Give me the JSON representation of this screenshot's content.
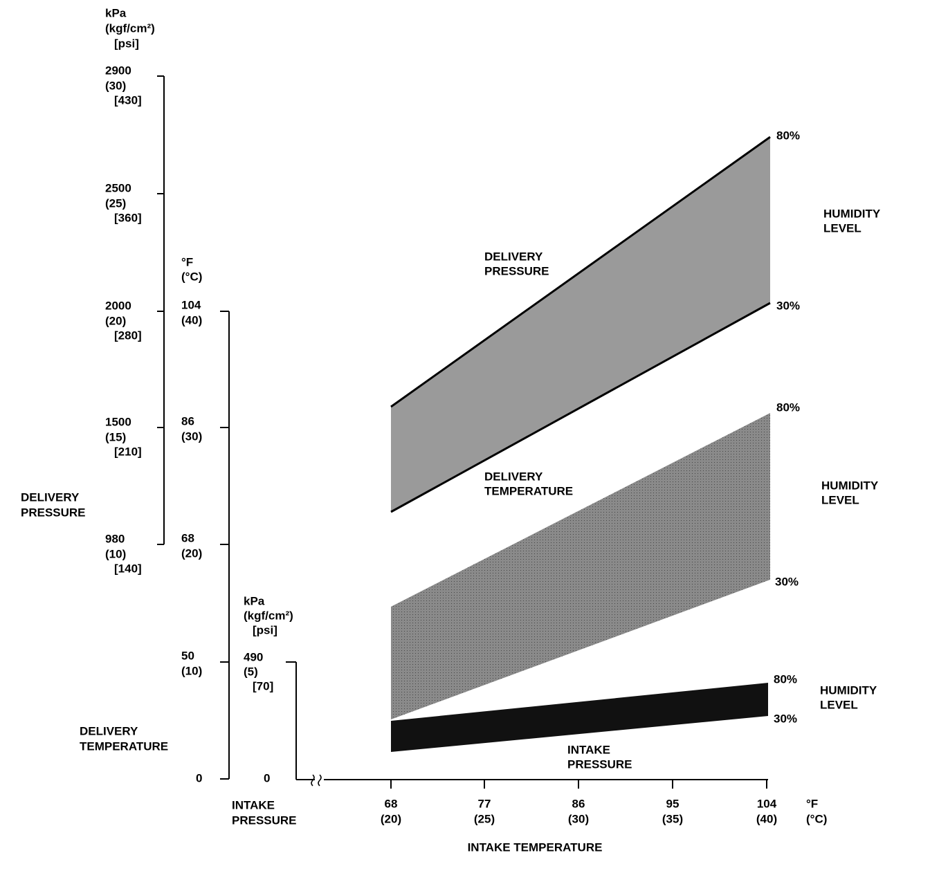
{
  "delivery_pressure_axis": {
    "units": [
      "kPa",
      "(kgf/cm²)",
      "[psi]"
    ],
    "ticks": [
      [
        "2900",
        "(30)",
        "[430]"
      ],
      [
        "2500",
        "(25)",
        "[360]"
      ],
      [
        "2000",
        "(20)",
        "[280]"
      ],
      [
        "1500",
        "(15)",
        "[210]"
      ],
      [
        "980",
        "(10)",
        "[140]"
      ]
    ],
    "label": [
      "DELIVERY",
      "PRESSURE"
    ]
  },
  "delivery_temperature_axis": {
    "units": [
      "°F",
      "(°C)"
    ],
    "ticks": [
      [
        "104",
        "(40)"
      ],
      [
        "86",
        "(30)"
      ],
      [
        "68",
        "(20)"
      ],
      [
        "50",
        "(10)"
      ],
      [
        "0"
      ]
    ],
    "label": [
      "DELIVERY",
      "TEMPERATURE"
    ]
  },
  "intake_pressure_axis": {
    "units": [
      "kPa",
      "(kgf/cm²)",
      "[psi]"
    ],
    "ticks": [
      [
        "490",
        "(5)",
        "[70]"
      ],
      [
        "0"
      ]
    ],
    "label": [
      "INTAKE",
      "PRESSURE"
    ]
  },
  "intake_temperature_axis": {
    "units": [
      "°F",
      "(°C)"
    ],
    "ticks": [
      [
        "68",
        "(20)"
      ],
      [
        "77",
        "(25)"
      ],
      [
        "86",
        "(30)"
      ],
      [
        "95",
        "(35)"
      ],
      [
        "104",
        "(40)"
      ]
    ],
    "label": "INTAKE TEMPERATURE"
  },
  "bands": [
    {
      "label": [
        "DELIVERY",
        "PRESSURE"
      ],
      "high": "80%",
      "low": "30%",
      "humidity": [
        "HUMIDITY",
        "LEVEL"
      ]
    },
    {
      "label": [
        "DELIVERY",
        "TEMPERATURE"
      ],
      "high": "80%",
      "low": "30%",
      "humidity": [
        "HUMIDITY",
        "LEVEL"
      ]
    },
    {
      "label": [
        "INTAKE",
        "PRESSURE"
      ],
      "high": "80%",
      "low": "30%",
      "humidity": [
        "HUMIDITY",
        "LEVEL"
      ]
    }
  ]
}
